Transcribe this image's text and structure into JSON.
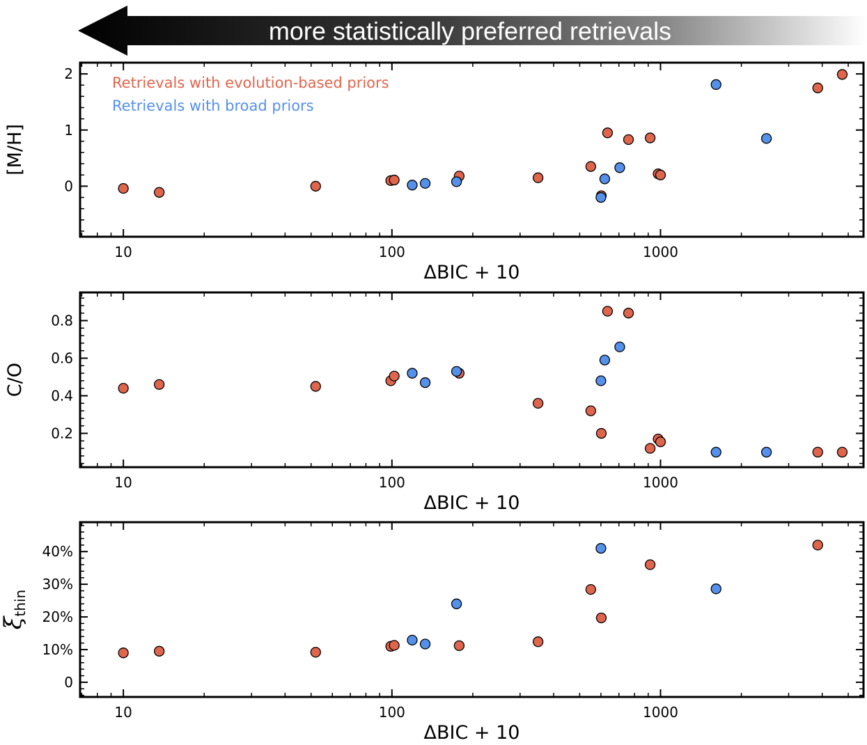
{
  "arrow": {
    "label": "more statistically preferred retrievals"
  },
  "colors": {
    "evolution": "#e0654d",
    "broad": "#5590ea"
  },
  "legend": {
    "evolution_label": "Retrievals with evolution-based priors",
    "broad_label": "Retrievals with broad priors"
  },
  "chart_data": [
    {
      "type": "scatter",
      "xlabel": "ΔBIC + 10",
      "ylabel": "[M/H]",
      "xscale": "log",
      "xlim": [
        6.9,
        5700
      ],
      "ylim": [
        -0.9,
        2.2
      ],
      "xticks": [
        10,
        100,
        1000
      ],
      "yticks": [
        0,
        1,
        2
      ],
      "ytick_labels": [
        "0",
        "1",
        "2"
      ],
      "legend_placement": "top-left",
      "series": [
        {
          "name": "Retrievals with evolution-based priors",
          "color_key": "evolution",
          "points": [
            [
              10,
              -0.04
            ],
            [
              13.6,
              -0.11
            ],
            [
              52,
              0.0
            ],
            [
              99,
              0.1
            ],
            [
              102,
              0.11
            ],
            [
              178,
              0.18
            ],
            [
              350,
              0.15
            ],
            [
              550,
              0.35
            ],
            [
              602,
              -0.17
            ],
            [
              635,
              0.95
            ],
            [
              760,
              0.83
            ],
            [
              915,
              0.86
            ],
            [
              980,
              0.22
            ],
            [
              1000,
              0.2
            ],
            [
              3850,
              1.75
            ],
            [
              4750,
              1.99
            ]
          ]
        },
        {
          "name": "Retrievals with broad priors",
          "color_key": "broad",
          "points": [
            [
              119,
              0.02
            ],
            [
              133,
              0.05
            ],
            [
              174,
              0.08
            ],
            [
              600,
              -0.2
            ],
            [
              620,
              0.13
            ],
            [
              705,
              0.33
            ],
            [
              1610,
              1.81
            ],
            [
              2480,
              0.85
            ]
          ]
        }
      ]
    },
    {
      "type": "scatter",
      "xlabel": "ΔBIC + 10",
      "ylabel": "C/O",
      "xscale": "log",
      "xlim": [
        6.9,
        5700
      ],
      "ylim": [
        0.02,
        0.95
      ],
      "xticks": [
        10,
        100,
        1000
      ],
      "yticks": [
        0.2,
        0.4,
        0.6,
        0.8
      ],
      "ytick_labels": [
        "0.2",
        "0.4",
        "0.6",
        "0.8"
      ],
      "series": [
        {
          "name": "Retrievals with evolution-based priors",
          "color_key": "evolution",
          "points": [
            [
              10,
              0.44
            ],
            [
              13.6,
              0.46
            ],
            [
              52,
              0.45
            ],
            [
              99,
              0.48
            ],
            [
              102,
              0.505
            ],
            [
              178,
              0.52
            ],
            [
              350,
              0.36
            ],
            [
              550,
              0.32
            ],
            [
              602,
              0.2
            ],
            [
              635,
              0.85
            ],
            [
              760,
              0.84
            ],
            [
              915,
              0.12
            ],
            [
              980,
              0.17
            ],
            [
              1000,
              0.155
            ],
            [
              3850,
              0.1
            ],
            [
              4750,
              0.1
            ]
          ]
        },
        {
          "name": "Retrievals with broad priors",
          "color_key": "broad",
          "points": [
            [
              119,
              0.52
            ],
            [
              133,
              0.47
            ],
            [
              174,
              0.53
            ],
            [
              600,
              0.48
            ],
            [
              620,
              0.59
            ],
            [
              705,
              0.66
            ],
            [
              1610,
              0.1
            ],
            [
              2480,
              0.1
            ]
          ]
        }
      ]
    },
    {
      "type": "scatter",
      "xlabel": "ΔBIC + 10",
      "ylabel": "ξthin",
      "xscale": "log",
      "xlim": [
        6.9,
        5700
      ],
      "ylim": [
        -0.045,
        0.49
      ],
      "xticks": [
        10,
        100,
        1000
      ],
      "yticks": [
        0,
        0.1,
        0.2,
        0.3,
        0.4
      ],
      "ytick_labels": [
        "0",
        "10%",
        "20%",
        "30%",
        "40%"
      ],
      "series": [
        {
          "name": "Retrievals with evolution-based priors",
          "color_key": "evolution",
          "points": [
            [
              10,
              0.09
            ],
            [
              13.6,
              0.095
            ],
            [
              52,
              0.092
            ],
            [
              99,
              0.11
            ],
            [
              102,
              0.113
            ],
            [
              178,
              0.112
            ],
            [
              350,
              0.124
            ],
            [
              550,
              0.284
            ],
            [
              602,
              0.197
            ],
            [
              915,
              0.36
            ],
            [
              3850,
              0.42
            ]
          ]
        },
        {
          "name": "Retrievals with broad priors",
          "color_key": "broad",
          "points": [
            [
              119,
              0.129
            ],
            [
              133,
              0.117
            ],
            [
              174,
              0.24
            ],
            [
              600,
              0.41
            ],
            [
              1610,
              0.286
            ]
          ]
        }
      ]
    }
  ]
}
